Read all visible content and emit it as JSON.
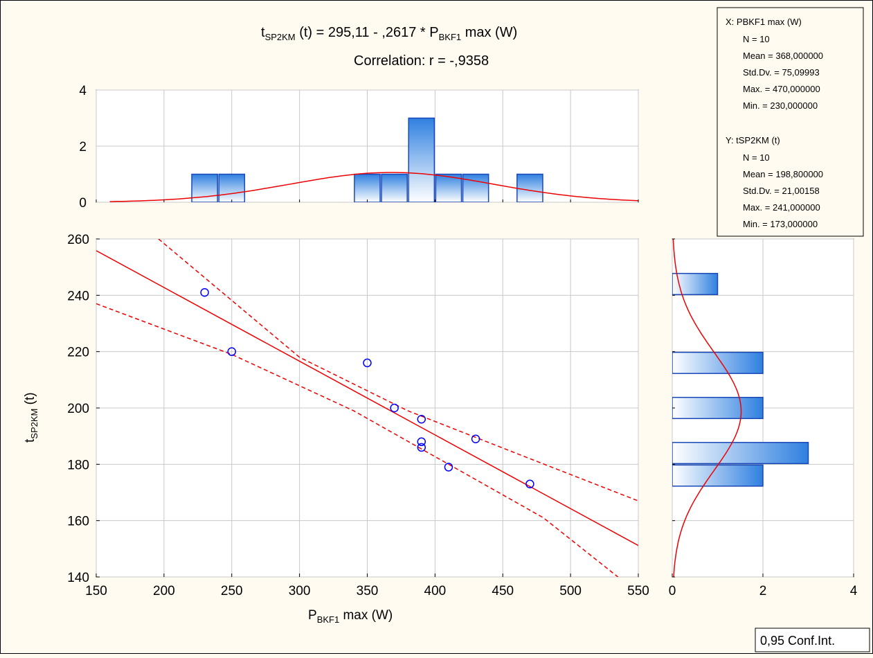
{
  "chart_data": {
    "type": "scatter",
    "title": {
      "t_sym": "t",
      "t_sub": "SP2KM",
      "t_rest": " (t) = 295,11 - ,2617  * P",
      "p_sub": "BKF1",
      "p_rest": " max (W)"
    },
    "subtitle": "Correlation: r = -,9358",
    "xlabel": {
      "sym": "P",
      "sub": "BKF1",
      "rest": " max (W)"
    },
    "ylabel": {
      "sym": "t",
      "sub": "SP2KM",
      "rest": " (t)"
    },
    "xlim": [
      150,
      550
    ],
    "ylim": [
      140,
      260
    ],
    "x_ticks": [
      "150",
      "200",
      "250",
      "300",
      "350",
      "400",
      "450",
      "500",
      "550"
    ],
    "y_ticks": [
      "140",
      "160",
      "180",
      "200",
      "220",
      "240",
      "260"
    ],
    "points": [
      {
        "x": 230,
        "y": 241
      },
      {
        "x": 250,
        "y": 220
      },
      {
        "x": 350,
        "y": 216
      },
      {
        "x": 370,
        "y": 200
      },
      {
        "x": 390,
        "y": 196
      },
      {
        "x": 390,
        "y": 188
      },
      {
        "x": 390,
        "y": 186
      },
      {
        "x": 410,
        "y": 179
      },
      {
        "x": 430,
        "y": 189
      },
      {
        "x": 470,
        "y": 173
      }
    ],
    "regression": {
      "intercept": 295.11,
      "slope": -0.2617
    },
    "confidence_band": {
      "upper": [
        {
          "x": 196,
          "y": 260
        },
        {
          "x": 300,
          "y": 218
        },
        {
          "x": 380,
          "y": 199
        },
        {
          "x": 470,
          "y": 182
        },
        {
          "x": 550,
          "y": 167
        }
      ],
      "lower": [
        {
          "x": 150,
          "y": 237
        },
        {
          "x": 250,
          "y": 219
        },
        {
          "x": 340,
          "y": 199
        },
        {
          "x": 410,
          "y": 180
        },
        {
          "x": 480,
          "y": 161
        },
        {
          "x": 535,
          "y": 140
        }
      ]
    },
    "x_hist": {
      "ylim": [
        0,
        4
      ],
      "ticks": [
        "0",
        "2",
        "4"
      ],
      "bins": [
        {
          "start": 220,
          "end": 240,
          "count": 1
        },
        {
          "start": 240,
          "end": 260,
          "count": 1
        },
        {
          "start": 340,
          "end": 360,
          "count": 1
        },
        {
          "start": 360,
          "end": 380,
          "count": 1
        },
        {
          "start": 380,
          "end": 400,
          "count": 3
        },
        {
          "start": 400,
          "end": 420,
          "count": 1
        },
        {
          "start": 420,
          "end": 440,
          "count": 1
        },
        {
          "start": 460,
          "end": 480,
          "count": 1
        }
      ],
      "normal": {
        "mean": 368,
        "sd": 75.09993
      }
    },
    "y_hist": {
      "xlim": [
        0,
        4
      ],
      "ticks": [
        "0",
        "2",
        "4"
      ],
      "bins": [
        {
          "start": 240,
          "end": 248,
          "count": 1
        },
        {
          "start": 212,
          "end": 220,
          "count": 2
        },
        {
          "start": 196,
          "end": 204,
          "count": 2
        },
        {
          "start": 180,
          "end": 188,
          "count": 3
        },
        {
          "start": 172,
          "end": 180,
          "count": 2
        }
      ],
      "normal": {
        "mean": 198.8,
        "sd": 21.00158
      }
    },
    "stats": {
      "x_header": "X:  PBKF1 max (W)",
      "x_lines": [
        "N = 10",
        "Mean = 368,000000",
        "Std.Dv. = 75,09993",
        "Max. = 470,000000",
        "Min. = 230,000000"
      ],
      "y_header": "Y:  tSP2KM (t)",
      "y_lines": [
        "N = 10",
        "Mean = 198,800000",
        "Std.Dv. = 21,00158",
        "Max. = 241,000000",
        "Min. = 173,000000"
      ]
    },
    "legend": "0,95 Conf.Int.",
    "colors": {
      "line": "#ee0000",
      "point": "#0000ff",
      "bar_dark": "#2f80e0",
      "bar_light": "#ffffff",
      "bar_border": "#1848b8",
      "grid": "#c8c8c8"
    }
  }
}
